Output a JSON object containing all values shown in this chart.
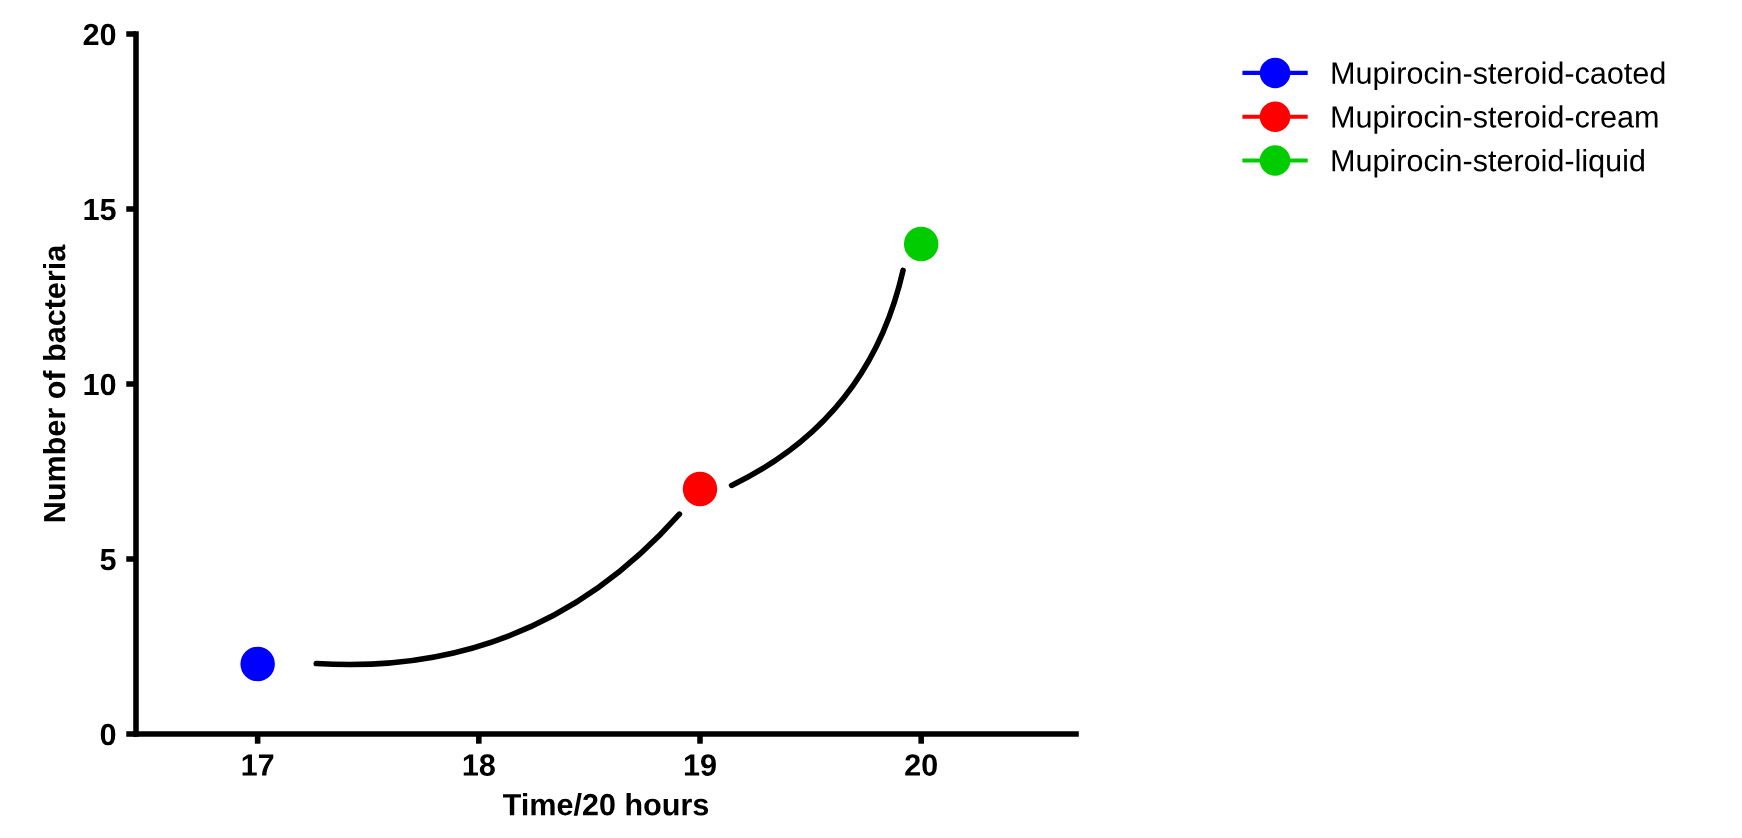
{
  "chart_data": {
    "type": "scatter",
    "xlabel": "Time/20 hours",
    "ylabel": "Number of bacteria",
    "xlim": [
      16.45,
      20.7
    ],
    "xticks": [
      17,
      18,
      19,
      20
    ],
    "ylim": [
      0,
      20
    ],
    "yticks": [
      0,
      5,
      10,
      15,
      20
    ],
    "grid": false,
    "legend": "top right",
    "marker": "circle",
    "series": [
      {
        "name": "Mupirocin-steroid-caoted",
        "color": "#0000ff",
        "x": [
          17
        ],
        "values": [
          2
        ]
      },
      {
        "name": "Mupirocin-steroid-cream",
        "color": "#ff0000",
        "x": [
          19
        ],
        "values": [
          7
        ]
      },
      {
        "name": "Mupirocin-steroid-liquid",
        "color": "#00cc00",
        "x": [
          20
        ],
        "values": [
          14
        ]
      }
    ]
  }
}
